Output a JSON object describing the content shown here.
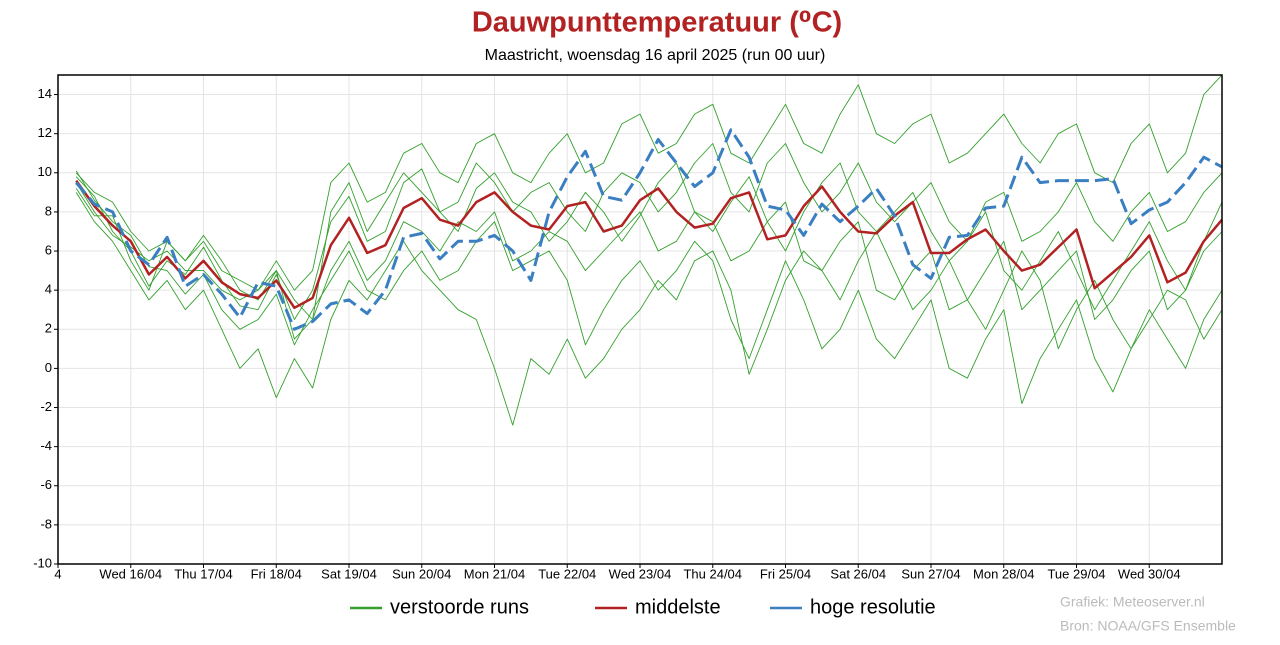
{
  "chart_data": {
    "type": "line",
    "title": "Dauwpunttemperatuur (⁰C)",
    "subtitle": "Maastricht, woensdag 16 april 2025 (run 00 uur)",
    "credits": [
      "Grafiek: Meteoserver.nl",
      "Bron: NOAA/GFS Ensemble"
    ],
    "grid": true,
    "xlim": [
      0,
      16
    ],
    "ylim": [
      -10,
      15
    ],
    "yticks": [
      -10,
      -8,
      -6,
      -4,
      -2,
      0,
      2,
      4,
      6,
      8,
      10,
      12,
      14
    ],
    "xticks": [
      {
        "value": 0,
        "label": "4"
      },
      {
        "value": 1,
        "label": "Wed 16/04"
      },
      {
        "value": 2,
        "label": "Thu 17/04"
      },
      {
        "value": 3,
        "label": "Fri 18/04"
      },
      {
        "value": 4,
        "label": "Sat 19/04"
      },
      {
        "value": 5,
        "label": "Sun 20/04"
      },
      {
        "value": 6,
        "label": "Mon 21/04"
      },
      {
        "value": 7,
        "label": "Tue 22/04"
      },
      {
        "value": 8,
        "label": "Wed 23/04"
      },
      {
        "value": 9,
        "label": "Thu 24/04"
      },
      {
        "value": 10,
        "label": "Fri 25/04"
      },
      {
        "value": 11,
        "label": "Sat 26/04"
      },
      {
        "value": 12,
        "label": "Sun 27/04"
      },
      {
        "value": 13,
        "label": "Mon 28/04"
      },
      {
        "value": 14,
        "label": "Tue 29/04"
      },
      {
        "value": 15,
        "label": "Wed 30/04"
      }
    ],
    "x": [
      0.25,
      0.5,
      0.75,
      1,
      1.25,
      1.5,
      1.75,
      2,
      2.25,
      2.5,
      2.75,
      3,
      3.25,
      3.5,
      3.75,
      4,
      4.25,
      4.5,
      4.75,
      5,
      5.25,
      5.5,
      5.75,
      6,
      6.25,
      6.5,
      6.75,
      7,
      7.25,
      7.5,
      7.75,
      8,
      8.25,
      8.5,
      8.75,
      9,
      9.25,
      9.5,
      9.75,
      10,
      10.25,
      10.5,
      10.75,
      11,
      11.25,
      11.5,
      11.75,
      12,
      12.25,
      12.5,
      12.75,
      13,
      13.25,
      13.5,
      13.75,
      14,
      14.25,
      14.5,
      14.75,
      15,
      15.25,
      15.5,
      15.75,
      16
    ],
    "series": [
      {
        "name": "verstoorde runs",
        "color": "#33a02c",
        "runs": [
          [
            9.8,
            8.8,
            7.0,
            6.0,
            4.2,
            5.5,
            4.8,
            6.2,
            4.5,
            3.2,
            3.0,
            4.8,
            2.5,
            4.0,
            7.5,
            8.8,
            6.5,
            7.0,
            9.5,
            10.2,
            8.0,
            7.0,
            9.2,
            10.0,
            8.5,
            8.0,
            6.5,
            7.5,
            9.0,
            8.0,
            6.5,
            7.8,
            9.5,
            10.5,
            8.0,
            7.0,
            8.5,
            9.8,
            7.5,
            6.0,
            8.0,
            9.5,
            10.5,
            8.0,
            7.0,
            8.0,
            9.0,
            7.0,
            5.5,
            6.5,
            8.0,
            5.0,
            4.0,
            5.5,
            7.0,
            5.0,
            3.0,
            4.5,
            6.0,
            7.5,
            5.5,
            4.0,
            6.5,
            8.5
          ],
          [
            9.0,
            7.5,
            6.5,
            5.0,
            3.5,
            4.5,
            3.0,
            4.0,
            2.0,
            0.0,
            1.0,
            -1.5,
            0.5,
            -1.0,
            2.5,
            4.5,
            3.5,
            5.0,
            6.5,
            5.0,
            4.0,
            3.0,
            2.5,
            0.0,
            -2.9,
            0.5,
            -0.3,
            1.5,
            -0.5,
            0.5,
            2.0,
            3.0,
            4.5,
            3.5,
            5.5,
            6.0,
            4.0,
            -0.3,
            2.0,
            4.5,
            6.0,
            5.0,
            3.5,
            5.5,
            7.0,
            5.0,
            3.0,
            4.0,
            5.5,
            3.5,
            2.0,
            4.0,
            6.0,
            4.5,
            1.0,
            3.0,
            4.5,
            2.5,
            1.0,
            2.5,
            4.0,
            3.5,
            1.5,
            3.0
          ],
          [
            10.0,
            9.0,
            8.5,
            7.0,
            6.0,
            6.5,
            5.5,
            6.5,
            5.0,
            4.5,
            4.0,
            5.5,
            4.0,
            5.0,
            9.5,
            10.5,
            8.5,
            9.0,
            11.0,
            11.5,
            10.0,
            9.5,
            11.5,
            12.0,
            10.0,
            9.5,
            11.0,
            12.0,
            10.0,
            10.5,
            12.5,
            13.0,
            11.0,
            11.5,
            13.0,
            13.5,
            11.0,
            10.5,
            12.0,
            13.5,
            11.5,
            11.0,
            13.0,
            14.5,
            12.0,
            11.5,
            12.5,
            13.0,
            10.5,
            11.0,
            12.0,
            13.0,
            11.5,
            10.5,
            12.0,
            12.5,
            10.0,
            9.5,
            11.5,
            12.5,
            10.0,
            11.0,
            14.0,
            15.0
          ],
          [
            9.5,
            8.0,
            6.8,
            6.2,
            5.5,
            6.0,
            5.0,
            5.0,
            4.0,
            3.5,
            4.0,
            5.0,
            3.5,
            2.5,
            5.0,
            6.5,
            4.5,
            5.5,
            7.5,
            7.0,
            6.0,
            7.5,
            7.0,
            8.0,
            5.5,
            6.0,
            7.0,
            6.5,
            5.0,
            6.0,
            7.0,
            8.0,
            6.0,
            6.5,
            8.0,
            7.5,
            5.5,
            6.0,
            7.5,
            8.5,
            5.5,
            5.0,
            6.5,
            7.5,
            4.0,
            3.5,
            5.0,
            6.0,
            3.0,
            3.5,
            5.0,
            6.5,
            3.0,
            4.0,
            5.0,
            6.0,
            2.5,
            3.5,
            5.0,
            6.0,
            3.0,
            4.0,
            6.0,
            7.0
          ],
          [
            9.2,
            7.8,
            7.8,
            5.5,
            4.0,
            6.5,
            5.5,
            6.8,
            5.5,
            4.0,
            3.5,
            5.0,
            1.5,
            2.5,
            8.0,
            9.5,
            7.0,
            8.5,
            10.0,
            9.0,
            8.0,
            8.5,
            10.5,
            9.5,
            8.0,
            9.0,
            9.5,
            8.0,
            7.0,
            9.0,
            10.0,
            9.5,
            8.0,
            9.0,
            10.5,
            11.5,
            9.0,
            8.0,
            10.5,
            11.5,
            9.5,
            8.0,
            9.0,
            10.5,
            8.5,
            7.5,
            8.5,
            9.5,
            7.5,
            6.5,
            8.5,
            9.0,
            6.5,
            7.0,
            8.0,
            9.5,
            7.5,
            6.5,
            8.0,
            9.0,
            7.0,
            7.5,
            9.0,
            10.0
          ],
          [
            10.1,
            8.6,
            7.5,
            6.8,
            5.2,
            5.0,
            3.8,
            4.8,
            3.0,
            2.0,
            2.5,
            3.8,
            1.2,
            3.0,
            4.5,
            6.0,
            4.0,
            3.5,
            5.0,
            6.0,
            4.5,
            5.0,
            6.5,
            7.5,
            5.0,
            5.5,
            6.0,
            4.5,
            1.2,
            3.0,
            4.5,
            5.5,
            4.0,
            5.0,
            6.5,
            5.5,
            2.5,
            0.5,
            3.0,
            5.5,
            3.5,
            1.0,
            2.0,
            4.0,
            1.5,
            0.5,
            2.0,
            3.5,
            0.0,
            -0.5,
            1.5,
            3.0,
            -1.8,
            0.5,
            2.0,
            3.5,
            0.5,
            -1.2,
            1.0,
            3.0,
            1.5,
            0.0,
            2.5,
            4.0
          ]
        ]
      },
      {
        "name": "middelste",
        "color": "#b22222",
        "values": [
          9.6,
          8.3,
          7.3,
          6.5,
          4.8,
          5.7,
          4.6,
          5.5,
          4.4,
          3.8,
          3.6,
          4.5,
          3.1,
          3.6,
          6.3,
          7.7,
          5.9,
          6.3,
          8.2,
          8.7,
          7.6,
          7.3,
          8.5,
          9.0,
          8.0,
          7.3,
          7.1,
          8.3,
          8.5,
          7.0,
          7.3,
          8.6,
          9.2,
          8.0,
          7.2,
          7.4,
          8.7,
          9.0,
          6.6,
          6.8,
          8.3,
          9.3,
          8.0,
          7.0,
          6.9,
          7.8,
          8.5,
          5.9,
          5.9,
          6.6,
          7.1,
          6.0,
          5.0,
          5.3,
          6.2,
          7.1,
          4.1,
          4.9,
          5.7,
          6.8,
          4.4,
          4.9,
          6.5,
          7.6
        ]
      },
      {
        "name": "hoge resolutie",
        "color": "#3a7fc1",
        "dashed": true,
        "values": [
          9.5,
          8.4,
          8.0,
          6.0,
          5.3,
          6.7,
          4.2,
          4.8,
          3.8,
          2.6,
          4.4,
          4.2,
          2.0,
          2.4,
          3.3,
          3.5,
          2.8,
          4.0,
          6.7,
          6.9,
          5.6,
          6.5,
          6.5,
          6.8,
          6.0,
          4.5,
          8.0,
          9.8,
          11.1,
          8.8,
          8.6,
          10.0,
          11.7,
          10.5,
          9.3,
          10.0,
          12.2,
          10.8,
          8.3,
          8.1,
          6.8,
          8.4,
          7.5,
          8.3,
          9.2,
          7.8,
          5.3,
          4.6,
          6.7,
          6.8,
          8.2,
          8.3,
          10.8,
          9.5,
          9.6,
          9.6,
          9.6,
          9.7,
          7.4,
          8.1,
          8.5,
          9.5,
          10.8,
          10.3
        ]
      }
    ]
  }
}
